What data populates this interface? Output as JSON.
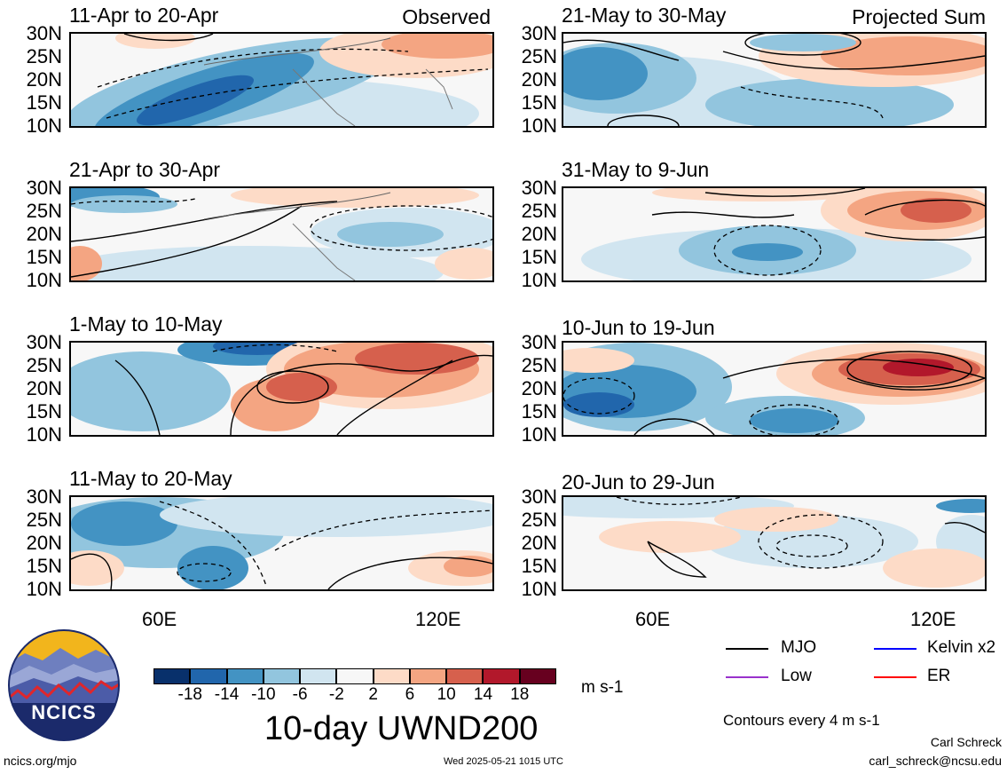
{
  "left_column": {
    "panels": [
      {
        "title": "11-Apr to 20-Apr",
        "corner": "Observed"
      },
      {
        "title": "21-Apr to 30-Apr",
        "corner": ""
      },
      {
        "title": "1-May to 10-May",
        "corner": ""
      },
      {
        "title": "11-May to 20-May",
        "corner": ""
      }
    ],
    "lon_labels": [
      "60E",
      "120E"
    ]
  },
  "right_column": {
    "panels": [
      {
        "title": "21-May to 30-May",
        "corner": "Projected Sum"
      },
      {
        "title": "31-May to 9-Jun",
        "corner": ""
      },
      {
        "title": "10-Jun to 19-Jun",
        "corner": ""
      },
      {
        "title": "20-Jun to 29-Jun",
        "corner": ""
      }
    ],
    "lon_labels": [
      "60E",
      "120E"
    ]
  },
  "lat_labels": [
    "30N",
    "25N",
    "20N",
    "15N",
    "10N"
  ],
  "colorbar": {
    "colors": [
      "#08306b",
      "#2166ac",
      "#4393c3",
      "#92c5de",
      "#d1e5f0",
      "#f7f7f7",
      "#fddbc7",
      "#f4a582",
      "#d6604d",
      "#b2182b",
      "#67001f"
    ],
    "ticks": [
      "-18",
      "-14",
      "-10",
      "-6",
      "-2",
      "2",
      "6",
      "10",
      "14",
      "18"
    ],
    "units": "m s-1",
    "title": "10-day UWND200"
  },
  "legend": {
    "items": [
      {
        "label": "MJO",
        "color": "#000000"
      },
      {
        "label": "Kelvin x2",
        "color": "#0000ff"
      },
      {
        "label": "Low",
        "color": "#9932cc"
      },
      {
        "label": "ER",
        "color": "#ff0000"
      }
    ],
    "contour_note": "Contours every 4 m s-1"
  },
  "logo": {
    "text": "NCICS"
  },
  "footer": {
    "url": "ncics.org/mjo",
    "timestamp": "Wed 2025-05-21 1015 UTC",
    "author": "Carl Schreck",
    "email": "carl_schreck@ncsu.edu"
  }
}
